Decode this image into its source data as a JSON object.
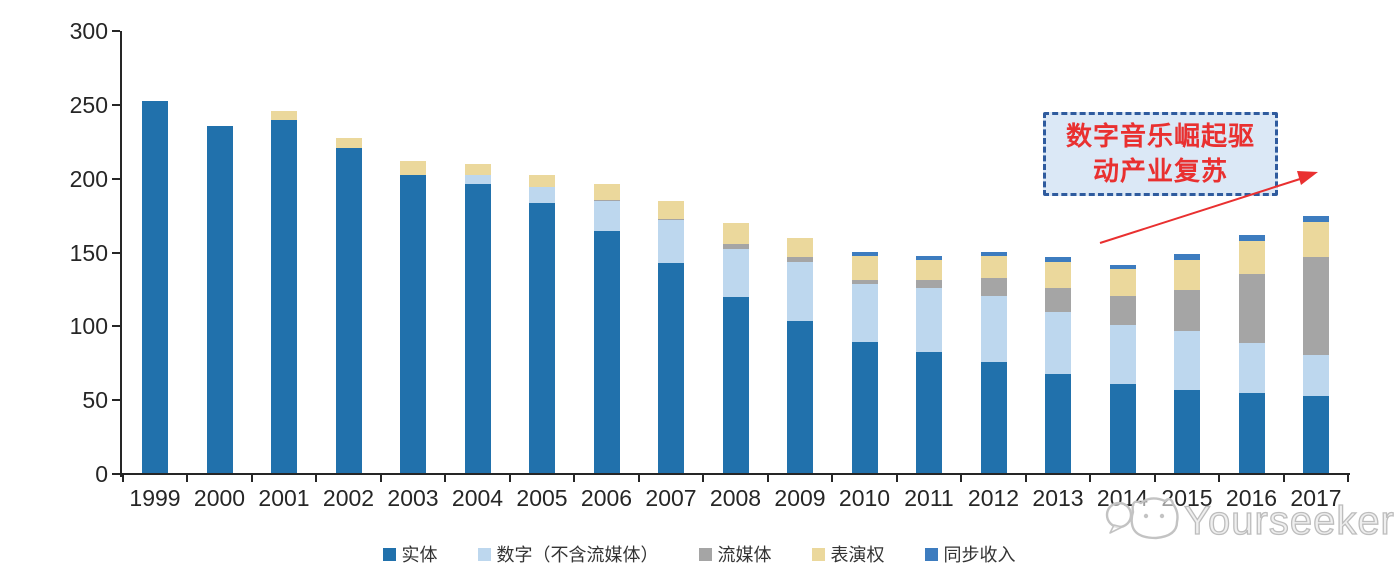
{
  "chart_data": {
    "type": "bar",
    "variant": "stacked",
    "title": "",
    "xlabel": "",
    "ylabel": "",
    "ylim": [
      0,
      300
    ],
    "yticks": [
      0,
      50,
      100,
      150,
      200,
      250,
      300
    ],
    "grid": false,
    "legend_position": "bottom",
    "categories": [
      "1999",
      "2000",
      "2001",
      "2002",
      "2003",
      "2004",
      "2005",
      "2006",
      "2007",
      "2008",
      "2009",
      "2010",
      "2011",
      "2012",
      "2013",
      "2014",
      "2015",
      "2016",
      "2017"
    ],
    "series": [
      {
        "name": "实体",
        "color": "#2171ac",
        "values": [
          252,
          235,
          239,
          220,
          202,
          196,
          183,
          164,
          142,
          119,
          103,
          89,
          82,
          75,
          67,
          60,
          56,
          54,
          52
        ]
      },
      {
        "name": "数字（不含流媒体）",
        "color": "#bdd7ee",
        "values": [
          0,
          0,
          0,
          0,
          0,
          6,
          11,
          20,
          29,
          33,
          40,
          39,
          43,
          45,
          42,
          40,
          40,
          34,
          28
        ]
      },
      {
        "name": "流媒体",
        "color": "#a5a5a5",
        "values": [
          0,
          0,
          0,
          0,
          0,
          0,
          0,
          1,
          1,
          3,
          3,
          3,
          6,
          12,
          16,
          20,
          28,
          47,
          66
        ]
      },
      {
        "name": "表演权",
        "color": "#ebd89c",
        "values": [
          0,
          0,
          6,
          7,
          9,
          7,
          8,
          11,
          12,
          14,
          13,
          16,
          13,
          15,
          18,
          18,
          20,
          22,
          24
        ]
      },
      {
        "name": "同步收入",
        "color": "#3d7cbf",
        "values": [
          0,
          0,
          0,
          0,
          0,
          0,
          0,
          0,
          0,
          0,
          0,
          3,
          3,
          3,
          3,
          3,
          4,
          4,
          4
        ]
      }
    ]
  },
  "annotation": {
    "line1": "数字音乐崛起驱",
    "line2": "动产业复苏",
    "text": "数字音乐崛起驱动产业复苏",
    "text_color": "#e93030",
    "box_fill": "#dbe8f6",
    "box_border": "#2f5b9e",
    "arrow_color": "#e93030"
  },
  "watermark": {
    "text": "Yourseeker"
  }
}
